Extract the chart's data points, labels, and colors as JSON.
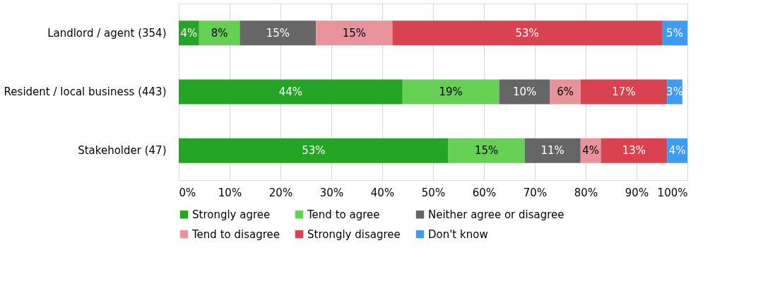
{
  "chart_data": {
    "type": "bar",
    "orientation": "horizontal",
    "stacked": true,
    "categories": [
      "Landlord / agent (354)",
      "Resident / local business (443)",
      "Stakeholder (47)"
    ],
    "series": [
      {
        "name": "Strongly agree",
        "color": "#25a525",
        "values": [
          4,
          44,
          53
        ],
        "value_labels": [
          "4%",
          "44%",
          "53%"
        ]
      },
      {
        "name": "Tend to agree",
        "color": "#66d055",
        "values": [
          8,
          19,
          15
        ],
        "value_labels": [
          "8%",
          "19%",
          "15%"
        ]
      },
      {
        "name": "Neither agree or disagree",
        "color": "#666666",
        "values": [
          15,
          10,
          11
        ],
        "value_labels": [
          "15%",
          "10%",
          "11%"
        ]
      },
      {
        "name": "Tend to disagree",
        "color": "#e8939a",
        "values": [
          15,
          6,
          4
        ],
        "value_labels": [
          "15%",
          "6%",
          "4%"
        ]
      },
      {
        "name": "Strongly disagree",
        "color": "#d9434f",
        "values": [
          53,
          17,
          13
        ],
        "value_labels": [
          "53%",
          "17%",
          "13%"
        ]
      },
      {
        "name": "Don't know",
        "color": "#3c9cf5",
        "values": [
          5,
          3,
          4
        ],
        "value_labels": [
          "5%",
          "3%",
          "4%"
        ]
      }
    ],
    "xlim": [
      0,
      100
    ],
    "xticks": [
      {
        "value": 0,
        "label": "0%"
      },
      {
        "value": 10,
        "label": "10%"
      },
      {
        "value": 20,
        "label": "20%"
      },
      {
        "value": 30,
        "label": "30%"
      },
      {
        "value": 40,
        "label": "40%"
      },
      {
        "value": 50,
        "label": "50%"
      },
      {
        "value": 60,
        "label": "60%"
      },
      {
        "value": 70,
        "label": "70%"
      },
      {
        "value": 80,
        "label": "80%"
      },
      {
        "value": 90,
        "label": "90%"
      },
      {
        "value": 100,
        "label": "100%"
      }
    ],
    "grid": "x",
    "legend": "bottom"
  }
}
